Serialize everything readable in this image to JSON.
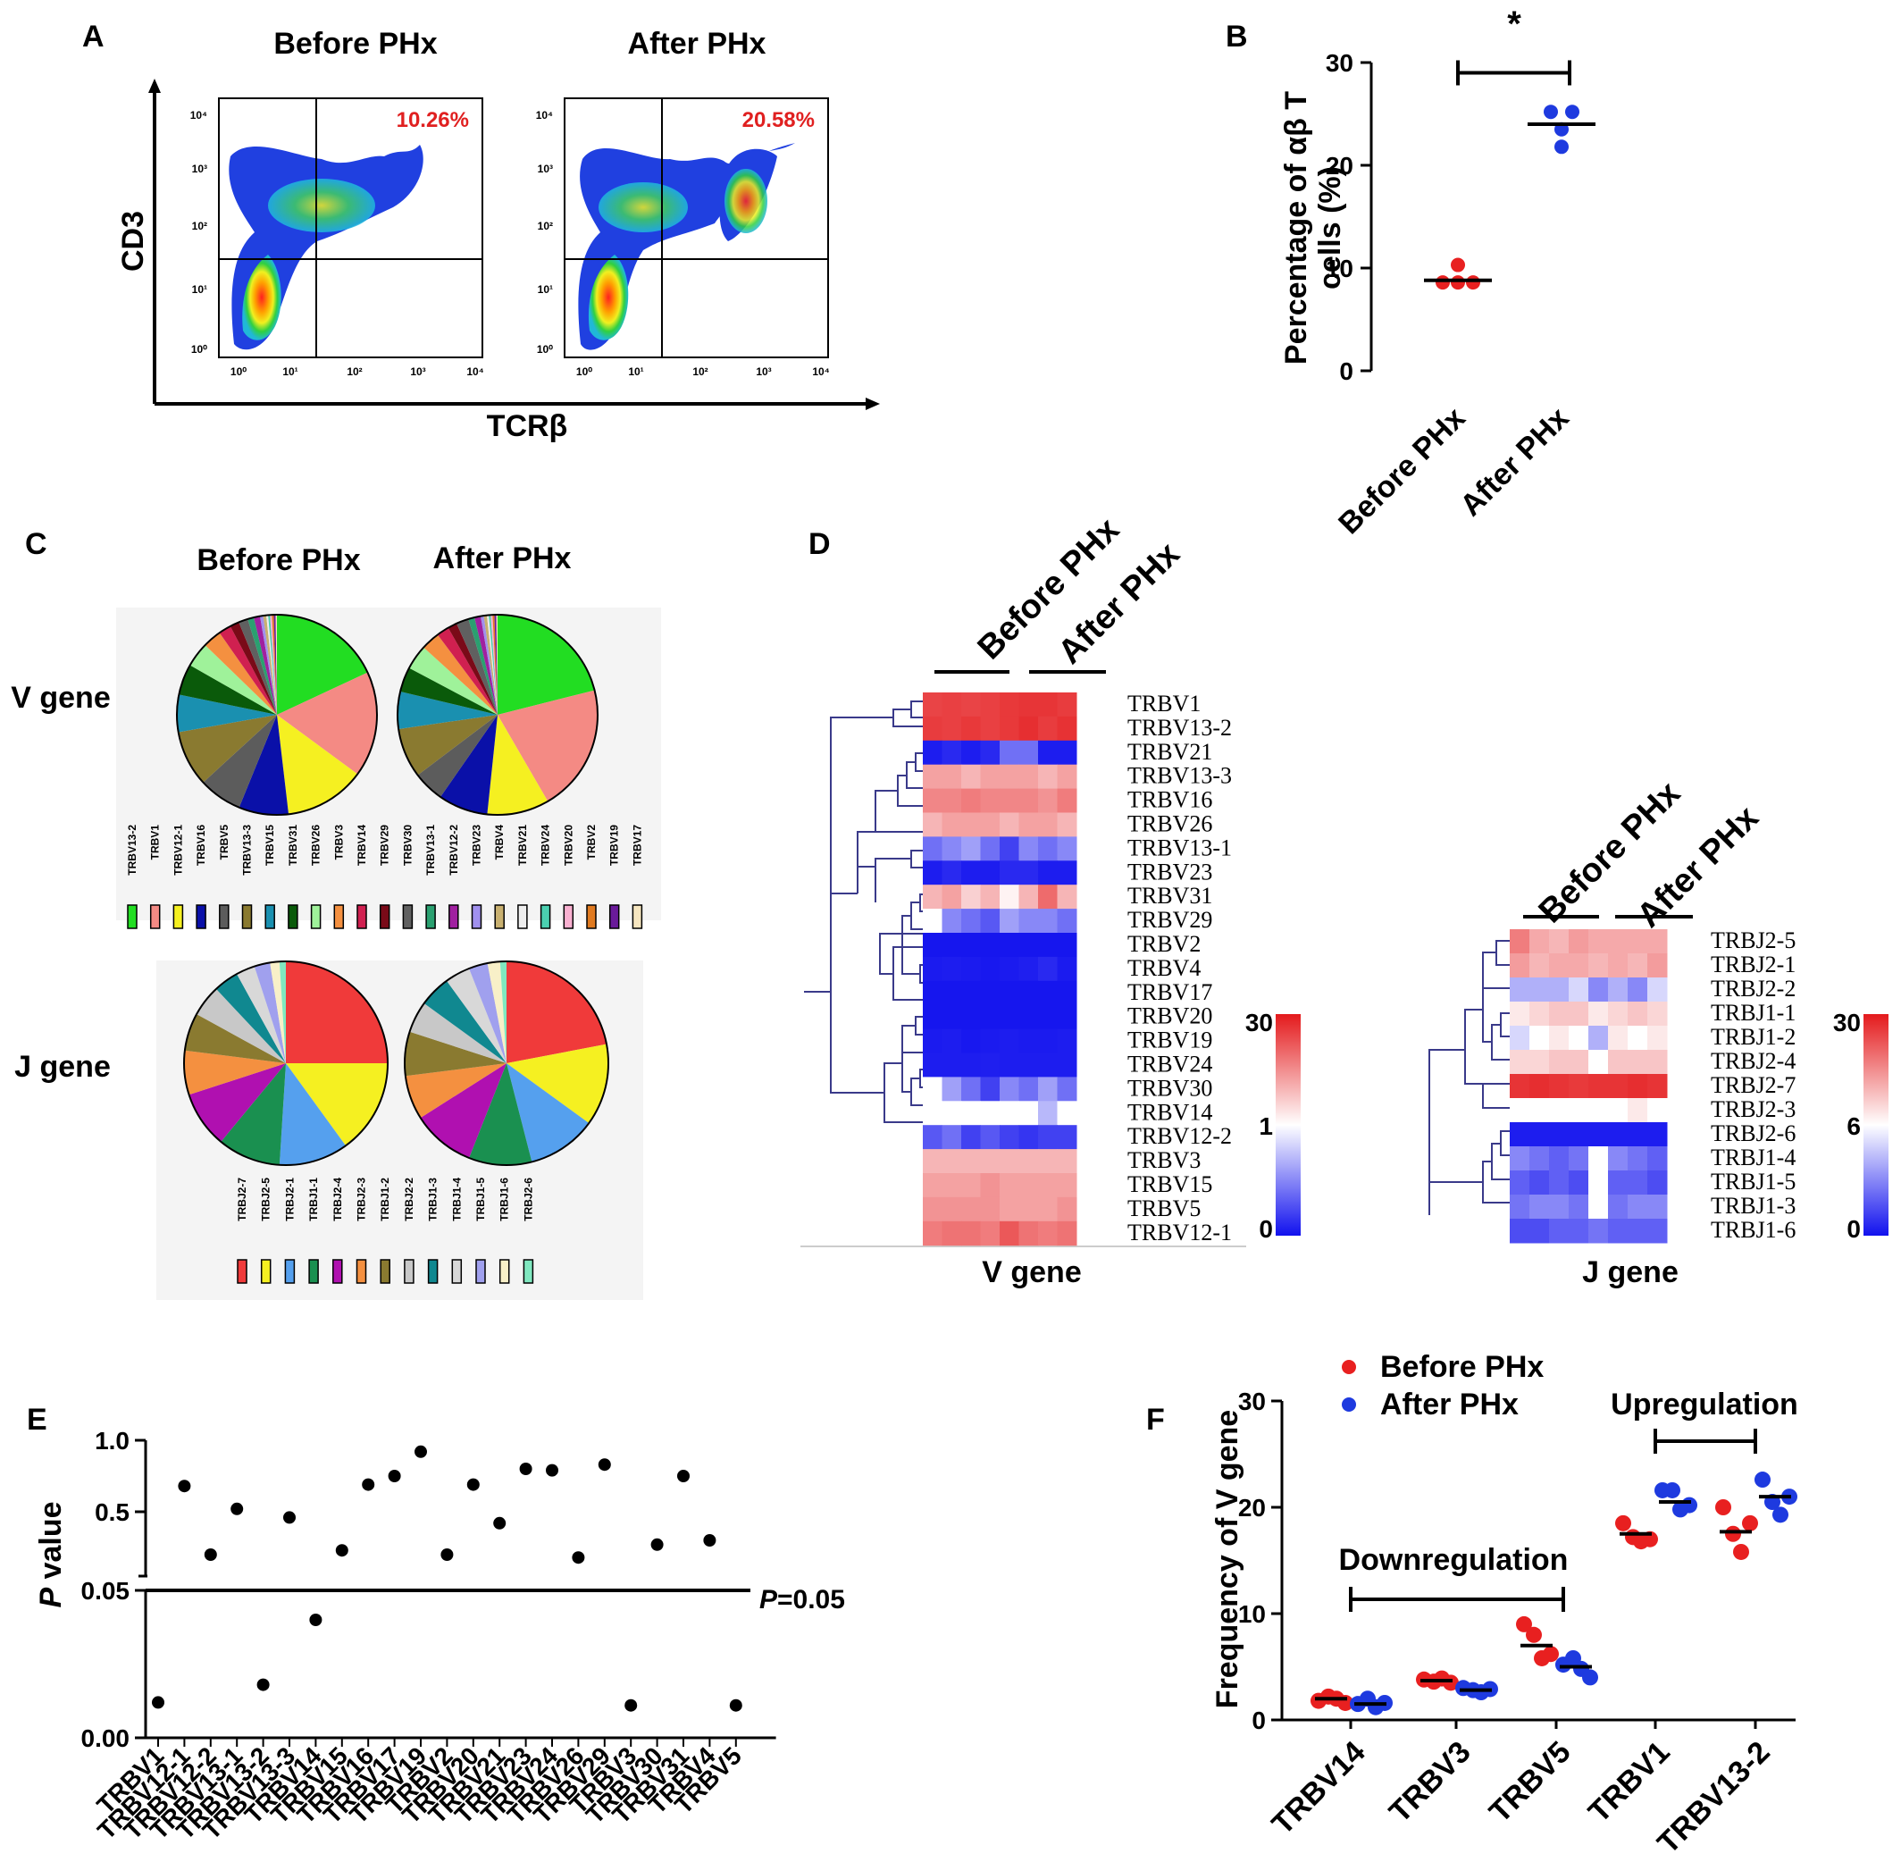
{
  "panels": {
    "A": {
      "label": "A",
      "plots": [
        {
          "title": "Before PHx",
          "percent": "10.26%"
        },
        {
          "title": "After PHx",
          "percent": "20.58%"
        }
      ],
      "xlabel": "TCRβ",
      "ylabel": "CD3",
      "ticks": [
        "10⁰",
        "10¹",
        "10²",
        "10³",
        "10⁴"
      ]
    },
    "B": {
      "label": "B",
      "significance": "*",
      "ylabel_line1": "Percentage of αβ T",
      "ylabel_line2": "cells (%)"
    },
    "C": {
      "label": "C",
      "titles": [
        "Before PHx",
        "After PHx"
      ],
      "row_labels": [
        "V gene",
        "J gene"
      ],
      "v_legend": [
        "TRBV13-2",
        "TRBV1",
        "TRBV12-1",
        "TRBV16",
        "TRBV5",
        "TRBV13-3",
        "TRBV15",
        "TRBV31",
        "TRBV26",
        "TRBV3",
        "TRBV14",
        "TRBV29",
        "TRBV30",
        "TRBV13-1",
        "TRBV12-2",
        "TRBV23",
        "TRBV4",
        "TRBV21",
        "TRBV24",
        "TRBV20",
        "TRBV2",
        "TRBV19",
        "TRBV17"
      ],
      "v_colors": [
        "#22dd22",
        "#f48a84",
        "#f5f021",
        "#0a10a8",
        "#5c5c5c",
        "#8a7a30",
        "#1a90b0",
        "#0a5a0a",
        "#9ff29a",
        "#f49040",
        "#d02050",
        "#7a0a18",
        "#606060",
        "#2aa070",
        "#a020a0",
        "#a090ee",
        "#c8b070",
        "#eeeeee",
        "#4ad0b0",
        "#f8b0d0",
        "#e07a20",
        "#6a1a9a",
        "#f6e6c0"
      ],
      "j_legend": [
        "TRBJ2-7",
        "TRBJ2-5",
        "TRBJ2-1",
        "TRBJ1-1",
        "TRBJ2-4",
        "TRBJ2-3",
        "TRBJ1-2",
        "TRBJ2-2",
        "TRBJ1-3",
        "TRBJ1-4",
        "TRBJ1-5",
        "TRBJ1-6",
        "TRBJ2-6"
      ],
      "j_colors": [
        "#f03a3a",
        "#f5f021",
        "#55a0ee",
        "#1a9050",
        "#b010b0",
        "#f49040",
        "#8a7a30",
        "#c8c8c8",
        "#108890",
        "#d8d8d8",
        "#a0a0ee",
        "#f8f0c8",
        "#80e8c0"
      ]
    },
    "D": {
      "label": "D",
      "group_labels": [
        "Before PHx",
        "After PHx"
      ],
      "v_rows": [
        "TRBV1",
        "TRBV13-2",
        "TRBV21",
        "TRBV13-3",
        "TRBV16",
        "TRBV26",
        "TRBV13-1",
        "TRBV23",
        "TRBV31",
        "TRBV29",
        "TRBV2",
        "TRBV4",
        "TRBV17",
        "TRBV20",
        "TRBV19",
        "TRBV24",
        "TRBV30",
        "TRBV14",
        "TRBV12-2",
        "TRBV3",
        "TRBV15",
        "TRBV5",
        "TRBV12-1"
      ],
      "v_scale": [
        "30",
        "1",
        "0"
      ],
      "v_xlabel": "V gene",
      "j_rows": [
        "TRBJ2-5",
        "TRBJ2-1",
        "TRBJ2-2",
        "TRBJ1-1",
        "TRBJ1-2",
        "TRBJ2-4",
        "TRBJ2-7",
        "TRBJ2-3",
        "TRBJ2-6",
        "TRBJ1-4",
        "TRBJ1-5",
        "TRBJ1-3",
        "TRBJ1-6"
      ],
      "j_scale": [
        "30",
        "6",
        "0"
      ],
      "j_xlabel": "J gene"
    },
    "E": {
      "label": "E",
      "ylabel_italic": "P",
      "ylabel_rest": " value",
      "yticks": [
        "1.0",
        "0.5",
        "0.05",
        "0.00"
      ],
      "threshold_italic": "P",
      "threshold_rest": "=0.05"
    },
    "F": {
      "label": "F",
      "ylabel": "Frequency of V gene",
      "legend": [
        "Before PHx",
        "After PHx"
      ],
      "downregulation": "Downregulation",
      "upregulation": "Upregulation"
    }
  },
  "chart_data": [
    {
      "type": "scatter",
      "panel": "B",
      "categories": [
        "Before PHx",
        "After PHx"
      ],
      "series": [
        {
          "name": "Before PHx",
          "x": [
            "Before PHx",
            "Before PHx",
            "Before PHx",
            "Before PHx"
          ],
          "values": [
            10.3,
            8.6,
            8.6,
            8.6
          ],
          "mean": 8.8,
          "color": "#e82020"
        },
        {
          "name": "After PHx",
          "x": [
            "After PHx",
            "After PHx",
            "After PHx",
            "After PHx"
          ],
          "values": [
            25.2,
            25.2,
            23.5,
            21.8
          ],
          "mean": 24.0,
          "color": "#1e3adf"
        }
      ],
      "ylim": [
        0,
        30
      ],
      "yticks": [
        0,
        10,
        20,
        30
      ],
      "ylabel": "Percentage of αβ T cells (%)"
    },
    {
      "type": "pie",
      "panel": "C",
      "gene": "V gene",
      "categories": [
        "TRBV13-2",
        "TRBV1",
        "TRBV12-1",
        "TRBV16",
        "TRBV5",
        "TRBV13-3",
        "TRBV15",
        "TRBV31",
        "TRBV26",
        "TRBV3",
        "TRBV14",
        "TRBV29",
        "TRBV30",
        "TRBV13-1",
        "TRBV12-2",
        "TRBV23",
        "TRBV4",
        "TRBV21",
        "TRBV24",
        "TRBV20",
        "TRBV2",
        "TRBV19",
        "TRBV17"
      ],
      "series": [
        {
          "name": "Before PHx",
          "values": [
            18.0,
            17.0,
            13.0,
            8.0,
            7.0,
            9.0,
            6.0,
            5.0,
            4.0,
            3.0,
            2.0,
            1.5,
            1.5,
            1.0,
            1.0,
            0.5,
            0.5,
            0.3,
            0.3,
            0.3,
            0.3,
            0.3,
            0.2
          ]
        },
        {
          "name": "After PHx",
          "values": [
            21.0,
            20.5,
            10.0,
            8.0,
            5.0,
            8.0,
            6.0,
            4.0,
            4.0,
            3.0,
            2.0,
            1.5,
            2.0,
            1.0,
            1.0,
            0.5,
            0.5,
            0.3,
            0.3,
            0.3,
            0.3,
            0.3,
            0.2
          ]
        }
      ]
    },
    {
      "type": "pie",
      "panel": "C",
      "gene": "J gene",
      "categories": [
        "TRBJ2-7",
        "TRBJ2-5",
        "TRBJ2-1",
        "TRBJ1-1",
        "TRBJ2-4",
        "TRBJ2-3",
        "TRBJ1-2",
        "TRBJ2-2",
        "TRBJ1-3",
        "TRBJ1-4",
        "TRBJ1-5",
        "TRBJ1-6",
        "TRBJ2-6"
      ],
      "series": [
        {
          "name": "Before PHx",
          "values": [
            25.0,
            15.0,
            11.0,
            10.0,
            9.0,
            7.0,
            6.0,
            5.0,
            4.0,
            3.0,
            2.5,
            1.5,
            1.0
          ]
        },
        {
          "name": "After PHx",
          "values": [
            22.0,
            13.0,
            11.0,
            10.0,
            10.0,
            7.0,
            7.0,
            5.0,
            5.0,
            4.0,
            3.0,
            2.0,
            1.0
          ]
        }
      ]
    },
    {
      "type": "heatmap",
      "panel": "D",
      "gene": "V gene",
      "rows": [
        "TRBV1",
        "TRBV13-2",
        "TRBV21",
        "TRBV13-3",
        "TRBV16",
        "TRBV26",
        "TRBV13-1",
        "TRBV23",
        "TRBV31",
        "TRBV29",
        "TRBV2",
        "TRBV4",
        "TRBV17",
        "TRBV20",
        "TRBV19",
        "TRBV24",
        "TRBV30",
        "TRBV14",
        "TRBV12-2",
        "TRBV3",
        "TRBV15",
        "TRBV5",
        "TRBV12-1"
      ],
      "columns": [
        "Before PHx",
        "Before PHx",
        "Before PHx",
        "Before PHx",
        "After PHx",
        "After PHx",
        "After PHx",
        "After PHx"
      ],
      "scale": [
        0,
        1,
        30
      ],
      "values": [
        [
          16,
          17,
          16,
          17,
          19,
          20,
          20,
          18
        ],
        [
          18,
          17,
          19,
          17,
          19,
          22,
          18,
          21
        ],
        [
          0.05,
          0.1,
          0.05,
          0.1,
          0.4,
          0.4,
          0.05,
          0.05
        ],
        [
          4,
          4,
          3,
          4,
          4,
          4,
          3,
          4
        ],
        [
          6,
          6,
          7,
          6,
          6,
          6,
          5,
          7
        ],
        [
          3,
          4,
          4,
          4,
          3,
          4,
          4,
          3
        ],
        [
          0.4,
          0.5,
          0.6,
          0.4,
          0.2,
          0.5,
          0.4,
          0.5
        ],
        [
          0.05,
          0.1,
          0.05,
          0.05,
          0.1,
          0.1,
          0.05,
          0.05
        ],
        [
          3,
          4,
          2,
          3,
          1.2,
          3,
          9,
          3
        ],
        [
          1,
          0.5,
          0.4,
          0.3,
          0.6,
          0.5,
          0.5,
          0.4
        ],
        [
          0.02,
          0.02,
          0.02,
          0.02,
          0.02,
          0.02,
          0.02,
          0.02
        ],
        [
          0.04,
          0.05,
          0.04,
          0.03,
          0.04,
          0.06,
          0.1,
          0.04
        ],
        [
          0.02,
          0.02,
          0.02,
          0.02,
          0.02,
          0.02,
          0.02,
          0.02
        ],
        [
          0.02,
          0.02,
          0.02,
          0.02,
          0.02,
          0.02,
          0.02,
          0.02
        ],
        [
          0.04,
          0.05,
          0.03,
          0.04,
          0.05,
          0.04,
          0.04,
          0.05
        ],
        [
          0.05,
          0.05,
          0.05,
          0.06,
          0.05,
          0.05,
          0.05,
          0.05
        ],
        [
          1,
          0.6,
          0.4,
          0.2,
          0.5,
          0.4,
          0.6,
          0.4
        ],
        [
          1,
          1,
          1,
          1,
          1,
          1,
          0.7,
          1
        ],
        [
          0.3,
          0.4,
          0.2,
          0.3,
          0.2,
          0.15,
          0.2,
          0.2
        ],
        [
          3,
          3,
          3,
          3,
          3,
          3,
          3,
          3
        ],
        [
          4,
          4,
          4,
          5,
          4,
          4,
          4,
          4
        ],
        [
          5,
          5,
          5,
          5,
          4,
          4,
          4,
          5
        ],
        [
          7,
          8,
          8,
          7,
          12,
          8,
          7,
          8
        ]
      ]
    },
    {
      "type": "heatmap",
      "panel": "D",
      "gene": "J gene",
      "rows": [
        "TRBJ2-5",
        "TRBJ2-1",
        "TRBJ2-2",
        "TRBJ1-1",
        "TRBJ1-2",
        "TRBJ2-4",
        "TRBJ2-7",
        "TRBJ2-3",
        "TRBJ2-6",
        "TRBJ1-4",
        "TRBJ1-5",
        "TRBJ1-3",
        "TRBJ1-6"
      ],
      "columns": [
        "Before PHx",
        "Before PHx",
        "Before PHx",
        "Before PHx",
        "After PHx",
        "After PHx",
        "After PHx",
        "After PHx"
      ],
      "scale": [
        0,
        6,
        30
      ],
      "values": [
        [
          15,
          11,
          10,
          12,
          11,
          11,
          11,
          11
        ],
        [
          12,
          10,
          11,
          11,
          10,
          11,
          10,
          12
        ],
        [
          4,
          4,
          4,
          5,
          3,
          4,
          3,
          5
        ],
        [
          7,
          8,
          9,
          9,
          7,
          8,
          9,
          8
        ],
        [
          5,
          6,
          7,
          6,
          4,
          7,
          6,
          7
        ],
        [
          8,
          8,
          9,
          9,
          6,
          9,
          9,
          9
        ],
        [
          25,
          26,
          25,
          24,
          25,
          25,
          26,
          25
        ],
        [
          6,
          6,
          6,
          6,
          6,
          6,
          7,
          6
        ],
        [
          0.3,
          0.3,
          0.3,
          0.3,
          0.3,
          0.3,
          0.3,
          0.3
        ],
        [
          3,
          2.5,
          2,
          2.5,
          6,
          3,
          2.5,
          2
        ],
        [
          2,
          1.5,
          2,
          1.5,
          6,
          2,
          2,
          1.5
        ],
        [
          2.5,
          3,
          3,
          2.5,
          6,
          2.5,
          3,
          3
        ],
        [
          1.5,
          1.5,
          2,
          2,
          2.5,
          2,
          2,
          2
        ]
      ]
    },
    {
      "type": "scatter",
      "panel": "E",
      "x": [
        "TRBV1",
        "TRBV12-1",
        "TRBV12-2",
        "TRBV13-1",
        "TRBV13-2",
        "TRBV13-3",
        "TRBV14",
        "TRBV15",
        "TRBV16",
        "TRBV17",
        "TRBV19",
        "TRBV2",
        "TRBV20",
        "TRBV21",
        "TRBV23",
        "TRBV24",
        "TRBV26",
        "TRBV29",
        "TRBV3",
        "TRBV30",
        "TRBV31",
        "TRBV4",
        "TRBV5"
      ],
      "values": [
        0.012,
        0.68,
        0.2,
        0.52,
        0.018,
        0.46,
        0.04,
        0.23,
        0.69,
        0.75,
        0.92,
        0.2,
        0.69,
        0.42,
        0.8,
        0.79,
        0.18,
        0.83,
        0.011,
        0.27,
        0.75,
        0.3,
        0.011
      ],
      "threshold": 0.05,
      "yticks": [
        0.0,
        0.05,
        0.5,
        1.0
      ],
      "yscale": "broken",
      "ylabel": "P value"
    },
    {
      "type": "scatter",
      "panel": "F",
      "categories": [
        "TRBV14",
        "TRBV3",
        "TRBV5",
        "TRBV1",
        "TRBV13-2"
      ],
      "series": [
        {
          "name": "Before PHx",
          "color": "#e82020",
          "points": [
            [
              1.8,
              2.2,
              2.0,
              1.6
            ],
            [
              3.8,
              3.6,
              3.9,
              3.5
            ],
            [
              9.0,
              8.0,
              5.8,
              6.2
            ],
            [
              18.5,
              17.2,
              16.8,
              17.0
            ],
            [
              20.0,
              17.5,
              15.8,
              18.5
            ]
          ],
          "means": [
            2.0,
            3.7,
            7.0,
            17.5,
            17.7
          ]
        },
        {
          "name": "After PHx",
          "color": "#1e3adf",
          "points": [
            [
              1.5,
              2.0,
              1.2,
              1.6
            ],
            [
              3.0,
              2.8,
              2.6,
              2.9
            ],
            [
              5.2,
              5.8,
              4.8,
              4.0
            ],
            [
              21.6,
              21.6,
              19.8,
              20.2
            ],
            [
              22.6,
              20.5,
              19.3,
              21.0
            ]
          ],
          "means": [
            1.5,
            2.8,
            5.0,
            20.5,
            21.0
          ]
        }
      ],
      "ylim": [
        0,
        30
      ],
      "yticks": [
        0,
        10,
        20,
        30
      ],
      "ylabel": "Frequency of V gene"
    }
  ]
}
